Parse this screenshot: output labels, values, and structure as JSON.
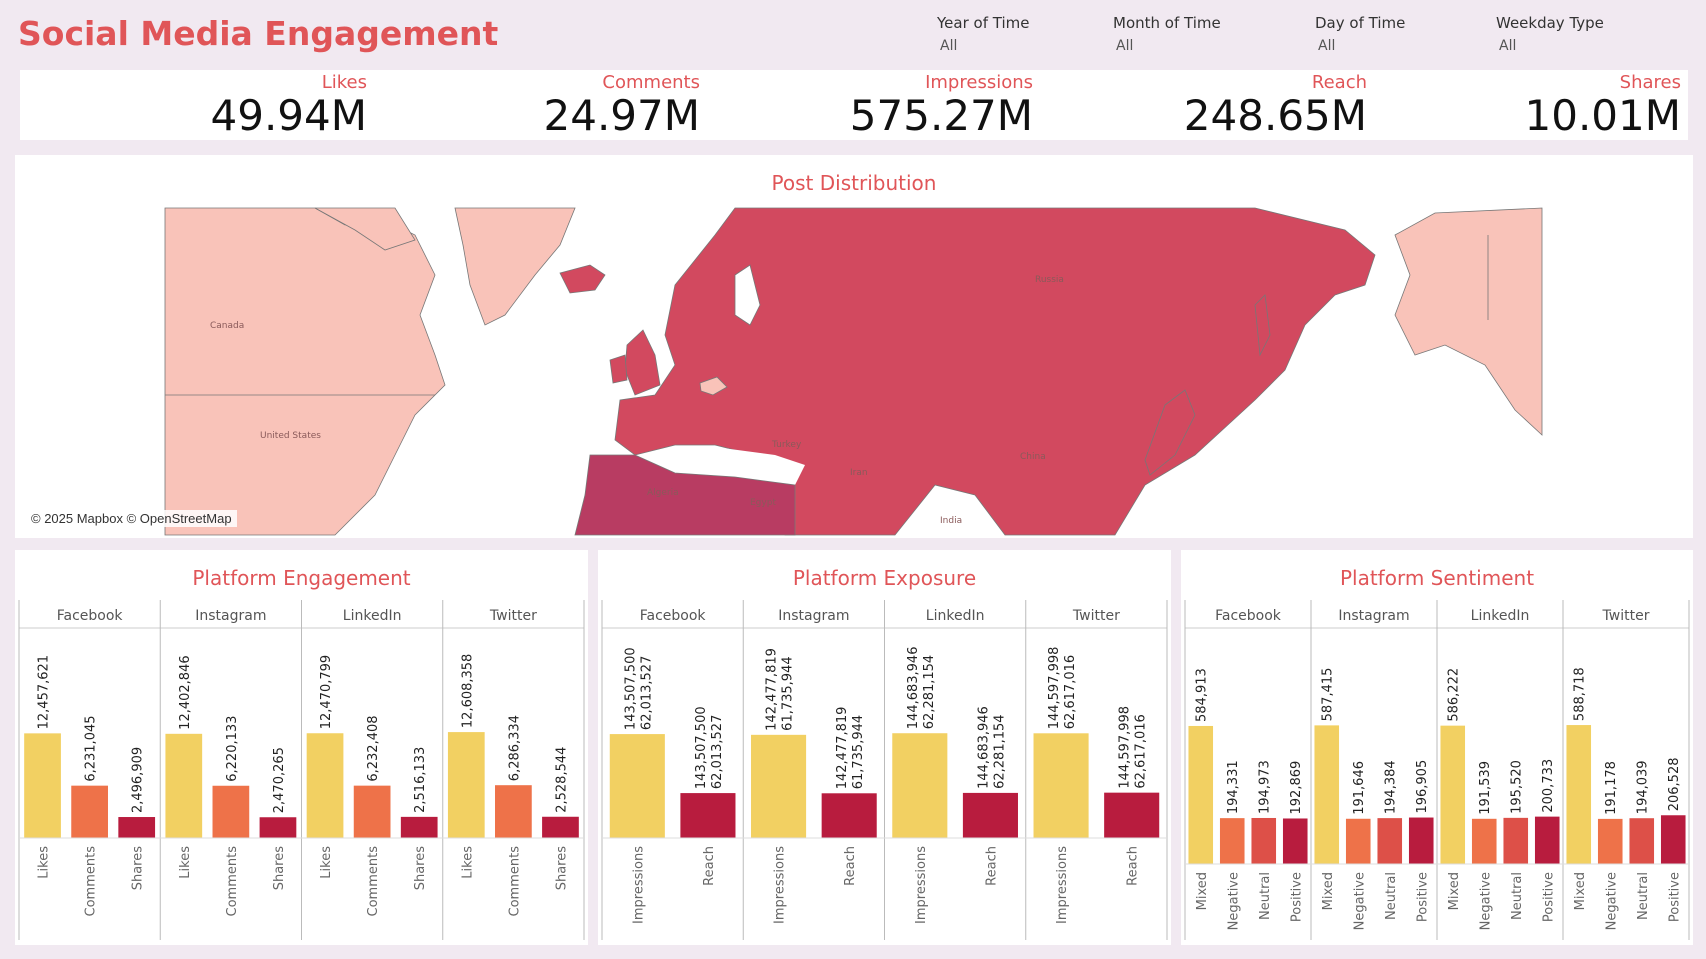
{
  "header": {
    "title": "Social Media Engagement"
  },
  "filters": [
    {
      "label": "Year of Time",
      "value": "All"
    },
    {
      "label": "Month of Time",
      "value": "All"
    },
    {
      "label": "Day of Time",
      "value": "All"
    },
    {
      "label": "Weekday Type",
      "value": "All"
    }
  ],
  "kpis": [
    {
      "label": "Likes",
      "value": "49.94M"
    },
    {
      "label": "Comments",
      "value": "24.97M"
    },
    {
      "label": "Impressions",
      "value": "575.27M"
    },
    {
      "label": "Reach",
      "value": "248.65M"
    },
    {
      "label": "Shares",
      "value": "10.01M"
    }
  ],
  "map": {
    "title": "Post Distribution",
    "attribution": "© 2025 Mapbox © OpenStreetMap",
    "place_labels": [
      "Canada",
      "United States",
      "Russia",
      "Turkey",
      "Iran",
      "Algeria",
      "Egypt",
      "China",
      "India"
    ],
    "colors": {
      "low": "#f9c3b9",
      "mid": "#d2495f",
      "high": "#b83c62",
      "water": "#ffffff"
    }
  },
  "colors": {
    "accent": "#e05558",
    "yellow": "#f2d062",
    "orange": "#ee7249",
    "red": "#dd5048",
    "crimson": "#b81c3e"
  },
  "chart_data": [
    {
      "type": "bar",
      "title": "Platform Engagement",
      "panels": [
        "Facebook",
        "Instagram",
        "LinkedIn",
        "Twitter"
      ],
      "categories": [
        "Likes",
        "Comments",
        "Shares"
      ],
      "series": [
        {
          "name": "Facebook",
          "values": [
            12457621,
            6231045,
            2496909
          ]
        },
        {
          "name": "Instagram",
          "values": [
            12402846,
            6220133,
            2470265
          ]
        },
        {
          "name": "LinkedIn",
          "values": [
            12470799,
            6232408,
            2516133
          ]
        },
        {
          "name": "Twitter",
          "values": [
            12608358,
            6286334,
            2528544
          ]
        }
      ],
      "labels": [
        [
          "12,457,621",
          "6,231,045",
          "2,496,909"
        ],
        [
          "12,402,846",
          "6,220,133",
          "2,470,265"
        ],
        [
          "12,470,799",
          "6,232,408",
          "2,516,133"
        ],
        [
          "12,608,358",
          "6,286,334",
          "2,528,544"
        ]
      ],
      "colors": [
        "#f2d062",
        "#ee7249",
        "#b81c3e"
      ],
      "ylim": [
        0,
        25000000
      ]
    },
    {
      "type": "bar",
      "title": "Platform Exposure",
      "panels": [
        "Facebook",
        "Instagram",
        "LinkedIn",
        "Twitter"
      ],
      "categories": [
        "Impressions",
        "Reach"
      ],
      "series": [
        {
          "name": "Facebook",
          "values": [
            143507500,
            62013527
          ]
        },
        {
          "name": "Instagram",
          "values": [
            142477819,
            61735944
          ]
        },
        {
          "name": "LinkedIn",
          "values": [
            144683946,
            62281154
          ]
        },
        {
          "name": "Twitter",
          "values": [
            144597998,
            62617016
          ]
        }
      ],
      "labels": [
        [
          [
            "143,507,500",
            "62,013,527"
          ],
          [
            "143,507,500",
            "62,013,527"
          ]
        ],
        [
          [
            "142,477,819",
            "61,735,944"
          ],
          [
            "142,477,819",
            "61,735,944"
          ]
        ],
        [
          [
            "144,683,946",
            "62,281,154"
          ],
          [
            "144,683,946",
            "62,281,154"
          ]
        ],
        [
          [
            "144,597,998",
            "62,617,016"
          ],
          [
            "144,597,998",
            "62,617,016"
          ]
        ]
      ],
      "colors": [
        "#f2d062",
        "#b81c3e"
      ],
      "ylim": [
        0,
        290000000
      ]
    },
    {
      "type": "bar",
      "title": "Platform Sentiment",
      "panels": [
        "Facebook",
        "Instagram",
        "LinkedIn",
        "Twitter"
      ],
      "categories": [
        "Mixed",
        "Negative",
        "Neutral",
        "Positive"
      ],
      "series": [
        {
          "name": "Facebook",
          "values": [
            584913,
            194331,
            194973,
            192869
          ]
        },
        {
          "name": "Instagram",
          "values": [
            587415,
            191646,
            194384,
            196905
          ]
        },
        {
          "name": "LinkedIn",
          "values": [
            586222,
            191539,
            195520,
            200733
          ]
        },
        {
          "name": "Twitter",
          "values": [
            588718,
            191178,
            194039,
            206528
          ]
        }
      ],
      "labels": [
        [
          "584,913",
          "194,331",
          "194,973",
          "192,869"
        ],
        [
          "587,415",
          "191,646",
          "194,384",
          "196,905"
        ],
        [
          "586,222",
          "191,539",
          "195,520",
          "200,733"
        ],
        [
          "588,718",
          "191,178",
          "194,039",
          "206,528"
        ]
      ],
      "colors": [
        "#f2d062",
        "#ee7249",
        "#dd5048",
        "#b81c3e"
      ],
      "ylim": [
        0,
        1000000
      ]
    }
  ]
}
